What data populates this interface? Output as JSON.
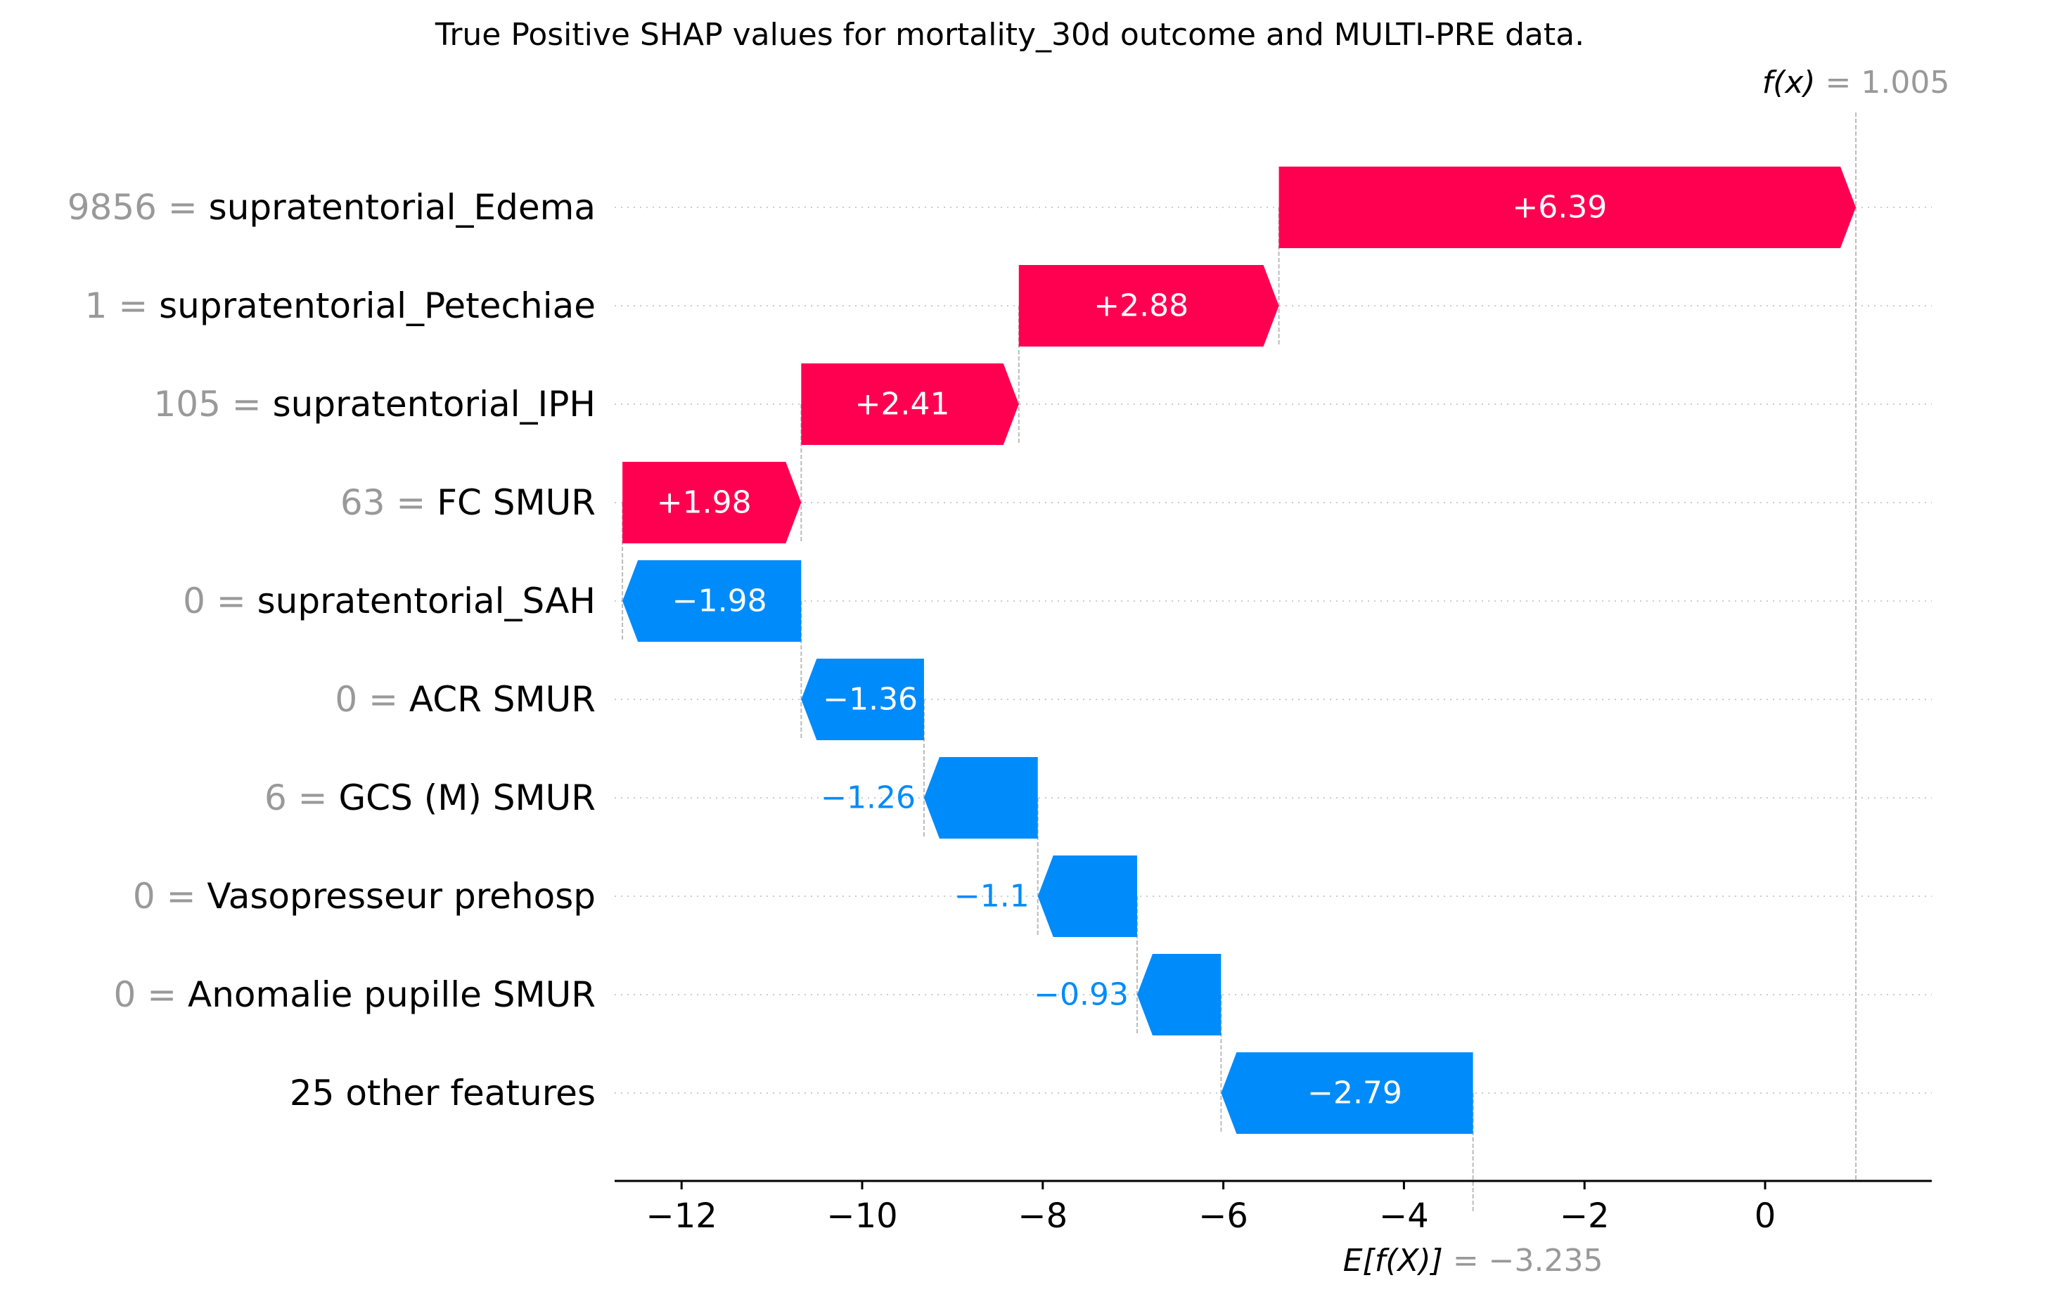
{
  "chart_data": {
    "type": "waterfall",
    "title": "True Positive SHAP values for mortality_30d outcome and MULTI-PRE data.",
    "base_value": -3.235,
    "final_value": 1.005,
    "base_label": "E[f(X)]",
    "base_value_text": "= −3.235",
    "final_label": "f(x)",
    "final_value_text": "= 1.005",
    "xlim": [
      -12.8,
      1.8
    ],
    "x_ticks": [
      -12,
      -10,
      -8,
      -6,
      -4,
      -2,
      0
    ],
    "x_tick_labels": [
      "−12",
      "−10",
      "−8",
      "−6",
      "−4",
      "−2",
      "0"
    ],
    "features": [
      {
        "value": "9856",
        "name": "supratentorial_Edema",
        "shap": 6.39,
        "label": "+6.39"
      },
      {
        "value": "1",
        "name": "supratentorial_Petechiae",
        "shap": 2.88,
        "label": "+2.88"
      },
      {
        "value": "105",
        "name": "supratentorial_IPH",
        "shap": 2.41,
        "label": "+2.41"
      },
      {
        "value": "63",
        "name": "FC SMUR ",
        "shap": 1.98,
        "label": "+1.98"
      },
      {
        "value": "0",
        "name": "supratentorial_SAH",
        "shap": -1.98,
        "label": "−1.98"
      },
      {
        "value": "0",
        "name": "ACR SMUR",
        "shap": -1.36,
        "label": "−1.36"
      },
      {
        "value": "6",
        "name": "GCS (M) SMUR ",
        "shap": -1.26,
        "label": "−1.26"
      },
      {
        "value": "0",
        "name": "Vasopresseur prehosp",
        "shap": -1.1,
        "label": "−1.1"
      },
      {
        "value": "0",
        "name": "Anomalie pupille SMUR",
        "shap": -0.93,
        "label": "−0.93"
      },
      {
        "value": "",
        "name": "25 other features",
        "shap": -2.79,
        "label": "−2.79"
      }
    ],
    "colors": {
      "positive": "#ff0051",
      "negative": "#008bfb",
      "value_gray": "#999999",
      "grid": "#cccccc"
    }
  }
}
